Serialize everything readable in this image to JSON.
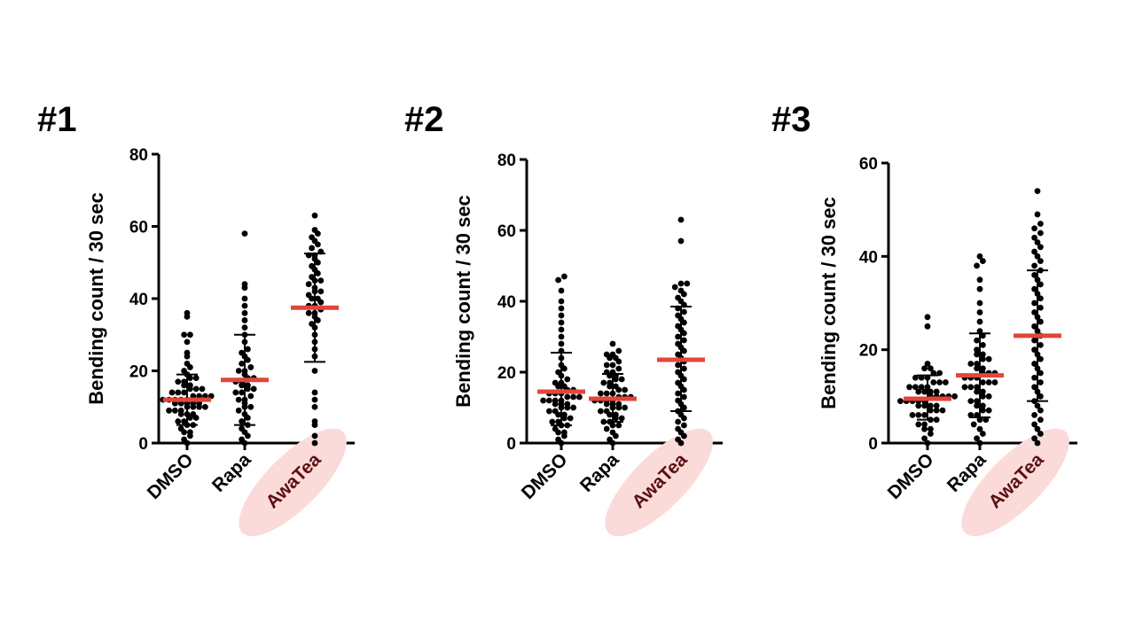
{
  "colors": {
    "dot": "#000000",
    "mean": "#e2463a",
    "highlight": "#fbdada",
    "highlight_text": "#5a1010",
    "axis": "#000000"
  },
  "chart_data": [
    {
      "type": "scatter",
      "panel_label": "#1",
      "ylabel": "Bending count / 30 sec",
      "ylim": [
        0,
        80
      ],
      "yticks": [
        0,
        20,
        40,
        60,
        80
      ],
      "categories": [
        "DMSO",
        "Rapa",
        "AwaTea"
      ],
      "highlighted_category": "AwaTea",
      "series": [
        {
          "category": "DMSO",
          "mean": 12,
          "sd_low": 5,
          "sd_high": 19,
          "values": [
            0,
            1,
            2,
            3,
            3,
            4,
            5,
            5,
            6,
            6,
            7,
            7,
            8,
            8,
            8,
            9,
            9,
            9,
            10,
            10,
            10,
            10,
            11,
            11,
            11,
            11,
            11,
            12,
            12,
            12,
            12,
            12,
            13,
            13,
            13,
            13,
            14,
            14,
            14,
            15,
            15,
            15,
            16,
            16,
            17,
            17,
            18,
            18,
            19,
            20,
            21,
            22,
            24,
            25,
            28,
            30,
            30,
            35,
            36
          ]
        },
        {
          "category": "Rapa",
          "mean": 17.5,
          "sd_low": 5,
          "sd_high": 30,
          "values": [
            0,
            1,
            2,
            3,
            4,
            5,
            6,
            7,
            8,
            9,
            10,
            10,
            11,
            12,
            12,
            13,
            14,
            14,
            15,
            15,
            16,
            16,
            17,
            17,
            18,
            18,
            19,
            20,
            20,
            21,
            22,
            23,
            24,
            25,
            26,
            28,
            30,
            32,
            34,
            36,
            38,
            40,
            43,
            44,
            58
          ]
        },
        {
          "category": "AwaTea",
          "mean": 37.5,
          "sd_low": 22.5,
          "sd_high": 52.5,
          "values": [
            0,
            2,
            5,
            6,
            10,
            12,
            14,
            20,
            24,
            26,
            28,
            30,
            32,
            33,
            34,
            35,
            36,
            36,
            37,
            38,
            38,
            39,
            40,
            40,
            41,
            42,
            42,
            43,
            44,
            45,
            45,
            46,
            47,
            48,
            49,
            50,
            51,
            52,
            52,
            53,
            54,
            55,
            56,
            57,
            58,
            59,
            63
          ]
        }
      ]
    },
    {
      "type": "scatter",
      "panel_label": "#2",
      "ylabel": "Bending count / 30 sec",
      "ylim": [
        0,
        80
      ],
      "yticks": [
        0,
        20,
        40,
        60,
        80
      ],
      "categories": [
        "DMSO",
        "Rapa",
        "AwaTea"
      ],
      "highlighted_category": "AwaTea",
      "series": [
        {
          "category": "DMSO",
          "mean": 14.5,
          "sd_low": 5,
          "sd_high": 25.5,
          "values": [
            0,
            1,
            2,
            3,
            3,
            4,
            5,
            5,
            6,
            6,
            7,
            7,
            8,
            8,
            9,
            9,
            10,
            10,
            10,
            11,
            11,
            11,
            12,
            12,
            12,
            12,
            13,
            13,
            13,
            14,
            14,
            14,
            15,
            15,
            16,
            16,
            17,
            17,
            18,
            19,
            20,
            21,
            22,
            24,
            26,
            28,
            30,
            32,
            34,
            36,
            38,
            40,
            43,
            46,
            47
          ]
        },
        {
          "category": "Rapa",
          "mean": 12.5,
          "sd_low": 6,
          "sd_high": 19.5,
          "values": [
            0,
            1,
            2,
            3,
            4,
            5,
            5,
            6,
            6,
            7,
            7,
            8,
            8,
            9,
            9,
            10,
            10,
            10,
            11,
            11,
            11,
            12,
            12,
            12,
            12,
            13,
            13,
            13,
            14,
            14,
            14,
            15,
            15,
            16,
            16,
            17,
            17,
            18,
            18,
            19,
            19,
            20,
            20,
            21,
            22,
            22,
            23,
            24,
            24,
            25,
            25,
            26,
            28
          ]
        },
        {
          "category": "AwaTea",
          "mean": 23.5,
          "sd_low": 9,
          "sd_high": 38.5,
          "values": [
            0,
            1,
            2,
            3,
            4,
            5,
            6,
            7,
            8,
            9,
            10,
            11,
            12,
            13,
            14,
            15,
            16,
            17,
            18,
            19,
            20,
            21,
            22,
            23,
            24,
            25,
            26,
            27,
            28,
            29,
            30,
            31,
            32,
            33,
            34,
            35,
            36,
            37,
            38,
            39,
            40,
            41,
            42,
            43,
            44,
            45,
            45,
            57,
            63
          ]
        }
      ]
    },
    {
      "type": "scatter",
      "panel_label": "#3",
      "ylabel": "Bending count / 30 sec",
      "ylim": [
        0,
        60
      ],
      "yticks": [
        0,
        20,
        40,
        60
      ],
      "categories": [
        "DMSO",
        "Rapa",
        "AwaTea"
      ],
      "highlighted_category": "AwaTea",
      "series": [
        {
          "category": "DMSO",
          "mean": 9.5,
          "sd_low": 5,
          "sd_high": 14.5,
          "values": [
            0,
            1,
            2,
            3,
            3,
            4,
            4,
            5,
            5,
            6,
            6,
            6,
            7,
            7,
            7,
            8,
            8,
            8,
            8,
            9,
            9,
            9,
            9,
            9,
            10,
            10,
            10,
            10,
            10,
            11,
            11,
            11,
            11,
            12,
            12,
            12,
            12,
            13,
            13,
            13,
            14,
            14,
            14,
            15,
            15,
            16,
            16,
            17,
            25,
            27
          ]
        },
        {
          "category": "Rapa",
          "mean": 14.5,
          "sd_low": 5.5,
          "sd_high": 23.5,
          "values": [
            0,
            1,
            2,
            3,
            4,
            5,
            5,
            6,
            6,
            7,
            7,
            8,
            8,
            9,
            9,
            10,
            10,
            11,
            11,
            12,
            12,
            12,
            13,
            13,
            13,
            14,
            14,
            14,
            15,
            15,
            15,
            16,
            16,
            17,
            17,
            18,
            18,
            19,
            19,
            20,
            21,
            22,
            23,
            24,
            26,
            28,
            30,
            33,
            35,
            38,
            39,
            40
          ]
        },
        {
          "category": "AwaTea",
          "mean": 23,
          "sd_low": 9,
          "sd_high": 37,
          "values": [
            0,
            1,
            2,
            3,
            4,
            5,
            6,
            7,
            8,
            9,
            10,
            11,
            12,
            13,
            14,
            15,
            16,
            17,
            18,
            19,
            20,
            21,
            22,
            23,
            24,
            25,
            26,
            27,
            28,
            29,
            30,
            31,
            32,
            33,
            34,
            35,
            36,
            37,
            38,
            39,
            40,
            41,
            42,
            43,
            44,
            45,
            46,
            47,
            49,
            54
          ]
        }
      ]
    }
  ]
}
